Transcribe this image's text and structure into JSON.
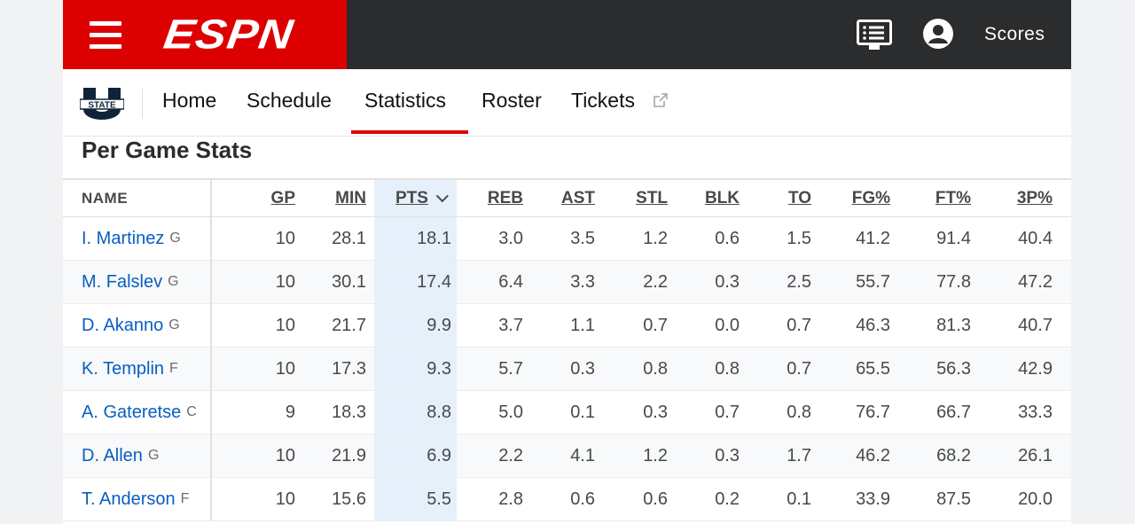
{
  "header": {
    "logo_text": "ESPN",
    "scores_label": "Scores",
    "icons": [
      "hamburger-menu-icon",
      "tv-guide-icon",
      "user-profile-icon"
    ],
    "brand_color": "#dd0000"
  },
  "subnav": {
    "team_logo_text": "STATE",
    "items": [
      "Home",
      "Schedule",
      "Statistics",
      "Roster",
      "Tickets"
    ],
    "active": "Statistics"
  },
  "section": {
    "title": "Per Game Stats"
  },
  "table": {
    "columns": [
      "NAME",
      "GP",
      "MIN",
      "PTS",
      "REB",
      "AST",
      "STL",
      "BLK",
      "TO",
      "FG%",
      "FT%",
      "3P%"
    ],
    "sorted_column": "PTS",
    "rows": [
      {
        "name": "I. Martinez",
        "pos": "G",
        "stats": [
          "10",
          "28.1",
          "18.1",
          "3.0",
          "3.5",
          "1.2",
          "0.6",
          "1.5",
          "41.2",
          "91.4",
          "40.4"
        ]
      },
      {
        "name": "M. Falslev",
        "pos": "G",
        "stats": [
          "10",
          "30.1",
          "17.4",
          "6.4",
          "3.3",
          "2.2",
          "0.3",
          "2.5",
          "55.7",
          "77.8",
          "47.2"
        ]
      },
      {
        "name": "D. Akanno",
        "pos": "G",
        "stats": [
          "10",
          "21.7",
          "9.9",
          "3.7",
          "1.1",
          "0.7",
          "0.0",
          "0.7",
          "46.3",
          "81.3",
          "40.7"
        ]
      },
      {
        "name": "K. Templin",
        "pos": "F",
        "stats": [
          "10",
          "17.3",
          "9.3",
          "5.7",
          "0.3",
          "0.8",
          "0.8",
          "0.7",
          "65.5",
          "56.3",
          "42.9"
        ]
      },
      {
        "name": "A. Gateretse",
        "pos": "C",
        "stats": [
          "9",
          "18.3",
          "8.8",
          "5.0",
          "0.1",
          "0.3",
          "0.7",
          "0.8",
          "76.7",
          "66.7",
          "33.3"
        ]
      },
      {
        "name": "D. Allen",
        "pos": "G",
        "stats": [
          "10",
          "21.9",
          "6.9",
          "2.2",
          "4.1",
          "1.2",
          "0.3",
          "1.7",
          "46.2",
          "68.2",
          "26.1"
        ]
      },
      {
        "name": "T. Anderson",
        "pos": "F",
        "stats": [
          "10",
          "15.6",
          "5.5",
          "2.8",
          "0.6",
          "0.6",
          "0.2",
          "0.1",
          "33.9",
          "87.5",
          "20.0"
        ]
      }
    ]
  }
}
